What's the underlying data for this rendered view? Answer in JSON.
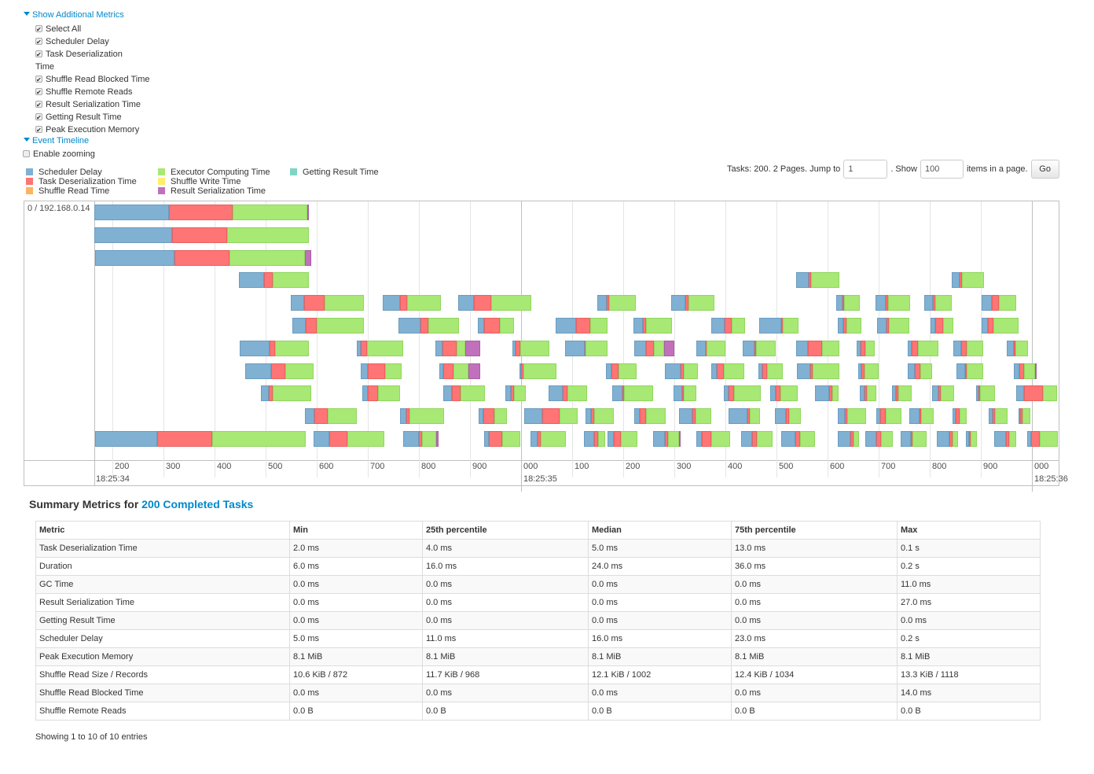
{
  "additional_metrics": {
    "toggle_label": "Show Additional Metrics",
    "items": [
      {
        "label": "Select All",
        "checked": true
      },
      {
        "label": "Scheduler Delay",
        "checked": true
      },
      {
        "label": "Task Deserialization",
        "checked": true
      },
      {
        "label": "Shuffle Read Blocked Time",
        "checked": true
      },
      {
        "label": "Shuffle Remote Reads",
        "checked": true
      },
      {
        "label": "Result Serialization Time",
        "checked": true
      },
      {
        "label": "Getting Result Time",
        "checked": true
      },
      {
        "label": "Peak Execution Memory",
        "checked": true
      }
    ],
    "wrap_text": "Time"
  },
  "event_timeline": {
    "toggle_label": "Event Timeline",
    "enable_zooming_label": "Enable zooming",
    "enable_zooming_checked": false,
    "legend": [
      {
        "label": "Scheduler Delay",
        "color": "#80B1D3"
      },
      {
        "label": "Task Deserialization Time",
        "color": "#FF7474"
      },
      {
        "label": "Shuffle Read Time",
        "color": "#FDB462"
      },
      {
        "label": "Executor Computing Time",
        "color": "#A8E874"
      },
      {
        "label": "Shuffle Write Time",
        "color": "#FFED6F"
      },
      {
        "label": "Result Serialization Time",
        "color": "#C171BB"
      },
      {
        "label": "Getting Result Time",
        "color": "#7FD5C5"
      }
    ],
    "pager": {
      "text_before": "Tasks: 200. 2 Pages. Jump to",
      "page_value": "1",
      "text_show": ". Show",
      "page_size_value": "100",
      "text_after": "items in a page.",
      "go_label": "Go"
    },
    "group_label": "0 / 192.168.0.14",
    "axis": {
      "minor_labels": [
        "200",
        "300",
        "400",
        "500",
        "600",
        "700",
        "800",
        "900",
        "000",
        "100",
        "200",
        "300",
        "400",
        "500",
        "600",
        "700",
        "800",
        "900",
        "000"
      ],
      "major_labels": [
        "18:25:34",
        "18:25:35",
        "18:25:36"
      ]
    },
    "segment_order": [
      "Scheduler Delay",
      "Task Deserialization Time",
      "Executor Computing Time",
      "Result Serialization Time"
    ],
    "rows": [
      [
        [
          165,
          145,
          126,
          145,
          3
        ]
      ],
      [
        [
          165,
          152,
          108,
          160,
          0
        ]
      ],
      [
        [
          166,
          155,
          108,
          148,
          12
        ]
      ],
      [
        [
          448,
          49,
          17,
          71,
          0
        ],
        [
          1538,
          25,
          5,
          55,
          0
        ],
        [
          1843,
          15,
          5,
          43,
          0
        ]
      ],
      [
        [
          549,
          26,
          40,
          77,
          0
        ],
        [
          729,
          34,
          14,
          66,
          0
        ],
        [
          877,
          31,
          34,
          78,
          0
        ],
        [
          1149,
          18,
          5,
          52,
          0
        ],
        [
          1294,
          28,
          6,
          51,
          0
        ],
        [
          1617,
          12,
          3,
          31,
          0
        ],
        [
          1694,
          20,
          5,
          42,
          0
        ],
        [
          1789,
          17,
          5,
          32,
          0
        ],
        [
          1902,
          20,
          14,
          34,
          0
        ]
      ],
      [
        [
          552,
          26,
          22,
          92,
          0
        ],
        [
          760,
          43,
          15,
          60,
          0
        ],
        [
          915,
          12,
          31,
          28,
          0
        ],
        [
          1068,
          40,
          28,
          34,
          0
        ],
        [
          1220,
          18,
          6,
          51,
          0
        ],
        [
          1372,
          26,
          15,
          26,
          0
        ],
        [
          1466,
          43,
          3,
          31,
          0
        ],
        [
          1620,
          11,
          6,
          29,
          0
        ],
        [
          1697,
          18,
          5,
          40,
          0
        ],
        [
          1802,
          9,
          15,
          20,
          0
        ],
        [
          1902,
          12,
          11,
          49,
          0
        ]
      ],
      [
        [
          449,
          58,
          11,
          66,
          0
        ],
        [
          678,
          8,
          12,
          72,
          0
        ],
        [
          832,
          14,
          28,
          17,
          29
        ],
        [
          983,
          6,
          9,
          57,
          0
        ],
        [
          1086,
          38,
          2,
          43,
          0
        ],
        [
          1222,
          23,
          15,
          20,
          20
        ],
        [
          1343,
          18,
          2,
          37,
          0
        ],
        [
          1434,
          23,
          3,
          38,
          0
        ],
        [
          1538,
          23,
          28,
          34,
          0
        ],
        [
          1657,
          8,
          9,
          18,
          0
        ],
        [
          1757,
          8,
          12,
          40,
          0
        ],
        [
          1846,
          15,
          12,
          32,
          0
        ],
        [
          1951,
          14,
          3,
          25,
          0
        ]
      ],
      [
        [
          460,
          51,
          28,
          55,
          0
        ],
        [
          686,
          14,
          34,
          32,
          0
        ],
        [
          840,
          8,
          20,
          29,
          23
        ],
        [
          997,
          3,
          5,
          65,
          0
        ],
        [
          1166,
          11,
          14,
          35,
          0
        ],
        [
          1282,
          31,
          5,
          28,
          0
        ],
        [
          1372,
          11,
          14,
          40,
          0
        ],
        [
          1465,
          8,
          9,
          31,
          0
        ],
        [
          1540,
          26,
          5,
          52,
          0
        ],
        [
          1660,
          6,
          6,
          28,
          0
        ],
        [
          1757,
          14,
          11,
          22,
          0
        ],
        [
          1852,
          17,
          3,
          32,
          0
        ],
        [
          1965,
          11,
          8,
          22,
          2
        ]
      ],
      [
        [
          491,
          15,
          8,
          75,
          0
        ],
        [
          689,
          11,
          20,
          43,
          0
        ],
        [
          848,
          17,
          17,
          48,
          0
        ],
        [
          969,
          11,
          6,
          23,
          0
        ],
        [
          1054,
          28,
          9,
          38,
          0
        ],
        [
          1178,
          20,
          3,
          58,
          0
        ],
        [
          1298,
          17,
          3,
          25,
          0
        ],
        [
          1397,
          9,
          11,
          52,
          0
        ],
        [
          1488,
          11,
          8,
          35,
          0
        ],
        [
          1575,
          28,
          6,
          12,
          0
        ],
        [
          1663,
          9,
          5,
          18,
          0
        ],
        [
          1726,
          8,
          5,
          25,
          0
        ],
        [
          1805,
          12,
          5,
          25,
          0
        ],
        [
          1891,
          5,
          3,
          29,
          0
        ],
        [
          1969,
          15,
          37,
          29,
          0
        ]
      ],
      [
        [
          577,
          18,
          26,
          58,
          0
        ],
        [
          763,
          12,
          6,
          69,
          0
        ],
        [
          917,
          9,
          22,
          25,
          0
        ],
        [
          1006,
          35,
          35,
          35,
          0
        ],
        [
          1126,
          11,
          6,
          38,
          0
        ],
        [
          1222,
          11,
          12,
          38,
          0
        ],
        [
          1309,
          26,
          6,
          32,
          0
        ],
        [
          1406,
          37,
          5,
          20,
          0
        ],
        [
          1497,
          22,
          6,
          22,
          0
        ],
        [
          1620,
          14,
          5,
          37,
          0
        ],
        [
          1695,
          8,
          11,
          31,
          0
        ],
        [
          1760,
          20,
          3,
          25,
          0
        ],
        [
          1845,
          6,
          8,
          14,
          0
        ],
        [
          1915,
          8,
          5,
          25,
          0
        ],
        [
          1974,
          3,
          5,
          15,
          0
        ]
      ],
      [
        [
          166,
          122,
          108,
          183,
          0
        ],
        [
          594,
          31,
          35,
          72,
          0
        ],
        [
          769,
          31,
          6,
          28,
          5
        ],
        [
          928,
          9,
          26,
          35,
          0
        ],
        [
          1018,
          14,
          6,
          49,
          0
        ],
        [
          1123,
          20,
          8,
          14,
          0
        ],
        [
          1169,
          12,
          14,
          32,
          0
        ],
        [
          1258,
          23,
          6,
          22,
          3
        ],
        [
          1343,
          11,
          18,
          37,
          0
        ],
        [
          1431,
          22,
          8,
          32,
          0
        ],
        [
          1509,
          28,
          9,
          29,
          0
        ],
        [
          1620,
          25,
          5,
          11,
          0
        ],
        [
          1674,
          22,
          8,
          23,
          0
        ],
        [
          1743,
          20,
          3,
          28,
          0
        ],
        [
          1814,
          25,
          5,
          11,
          0
        ],
        [
          1871,
          6,
          3,
          12,
          0
        ],
        [
          1926,
          23,
          6,
          14,
          0
        ],
        [
          1991,
          8,
          17,
          35,
          0
        ]
      ]
    ]
  },
  "summary": {
    "title_prefix": "Summary Metrics for",
    "title_link": "200 Completed Tasks",
    "columns": [
      "Metric",
      "Min",
      "25th percentile",
      "Median",
      "75th percentile",
      "Max"
    ],
    "rows": [
      [
        "Task Deserialization Time",
        "2.0 ms",
        "4.0 ms",
        "5.0 ms",
        "13.0 ms",
        "0.1 s"
      ],
      [
        "Duration",
        "6.0 ms",
        "16.0 ms",
        "24.0 ms",
        "36.0 ms",
        "0.2 s"
      ],
      [
        "GC Time",
        "0.0 ms",
        "0.0 ms",
        "0.0 ms",
        "0.0 ms",
        "11.0 ms"
      ],
      [
        "Result Serialization Time",
        "0.0 ms",
        "0.0 ms",
        "0.0 ms",
        "0.0 ms",
        "27.0 ms"
      ],
      [
        "Getting Result Time",
        "0.0 ms",
        "0.0 ms",
        "0.0 ms",
        "0.0 ms",
        "0.0 ms"
      ],
      [
        "Scheduler Delay",
        "5.0 ms",
        "11.0 ms",
        "16.0 ms",
        "23.0 ms",
        "0.2 s"
      ],
      [
        "Peak Execution Memory",
        "8.1 MiB",
        "8.1 MiB",
        "8.1 MiB",
        "8.1 MiB",
        "8.1 MiB"
      ],
      [
        "Shuffle Read Size / Records",
        "10.6 KiB / 872",
        "11.7 KiB / 968",
        "12.1 KiB / 1002",
        "12.4 KiB / 1034",
        "13.3 KiB / 1118"
      ],
      [
        "Shuffle Read Blocked Time",
        "0.0 ms",
        "0.0 ms",
        "0.0 ms",
        "0.0 ms",
        "14.0 ms"
      ],
      [
        "Shuffle Remote Reads",
        "0.0 B",
        "0.0 B",
        "0.0 B",
        "0.0 B",
        "0.0 B"
      ]
    ],
    "footer": "Showing 1 to 10 of 10 entries"
  }
}
